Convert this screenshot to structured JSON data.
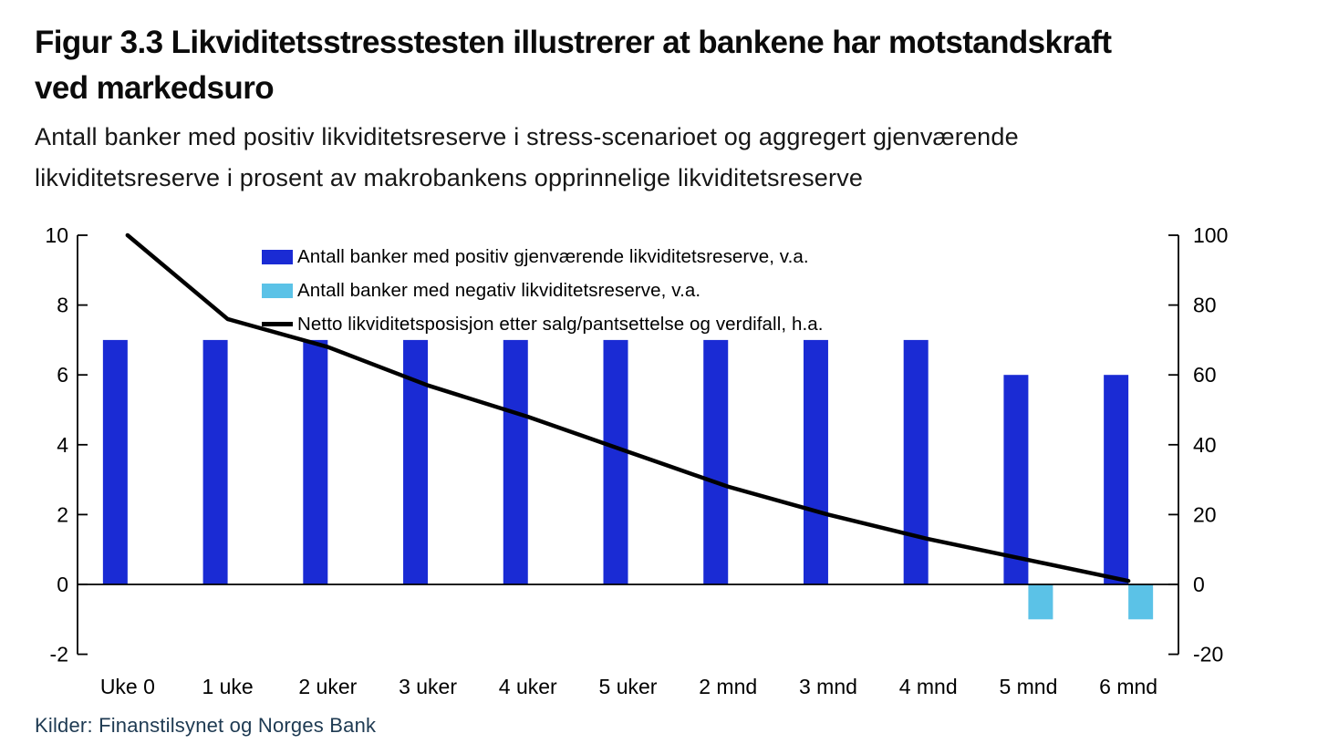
{
  "figure": {
    "title_line1": "Figur 3.3 Likviditetsstresstesten illustrerer at bankene har motstandskraft",
    "title_line2": "ved markedsuro",
    "subtitle_line1": "Antall banker med positiv likviditetsreserve i stress-scenarioet og aggregert gjenværende",
    "subtitle_line2": "likviditetsreserve i prosent av makrobankens opprinnelige likviditetsreserve",
    "source": "Kilder: Finanstilsynet og Norges Bank"
  },
  "colors": {
    "positive_bar": "#1A2BD4",
    "negative_bar": "#5BC2E7",
    "line": "#000000",
    "axis": "#000000",
    "tick_label": "#000000",
    "source_text": "#1E3A52"
  },
  "chart_data": {
    "type": "bar",
    "subtype": "grouped-bar-with-line",
    "categories": [
      "Uke 0",
      "1 uke",
      "2 uker",
      "3 uker",
      "4 uker",
      "5 uker",
      "2 mnd",
      "3 mnd",
      "4 mnd",
      "5 mnd",
      "6 mnd"
    ],
    "series": [
      {
        "name": "Antall banker med positiv gjenværende likviditetsreserve, v.a.",
        "type": "bar",
        "axis": "left",
        "values": [
          7,
          7,
          7,
          7,
          7,
          7,
          7,
          7,
          7,
          6,
          6
        ]
      },
      {
        "name": "Antall banker med negativ likviditetsreserve, v.a.",
        "type": "bar",
        "axis": "left",
        "values": [
          0,
          0,
          0,
          0,
          0,
          0,
          0,
          0,
          0,
          -1,
          -1
        ]
      },
      {
        "name": "Netto likviditetsposisjon etter salg/pantsettelse og verdifall, h.a.",
        "type": "line",
        "axis": "right",
        "values": [
          100,
          76,
          68,
          57,
          48,
          38,
          28,
          20,
          13,
          7,
          1
        ]
      }
    ],
    "left_axis": {
      "min": -2,
      "max": 10,
      "ticks": [
        10,
        8,
        6,
        4,
        2,
        0,
        -2
      ]
    },
    "right_axis": {
      "min": -20,
      "max": 100,
      "ticks": [
        100,
        80,
        60,
        40,
        20,
        0,
        -20
      ]
    },
    "grid": false,
    "legend_position": "top-center",
    "title": "Figur 3.3 Likviditetsstresstesten illustrerer at bankene har motstandskraft ved markedsuro",
    "xlabel": "",
    "ylabel_left": "",
    "ylabel_right": ""
  }
}
